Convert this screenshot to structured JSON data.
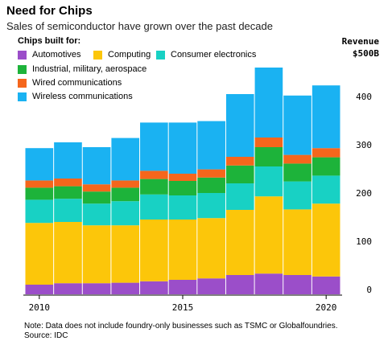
{
  "header": {
    "title": "Need for Chips",
    "subtitle": "Sales of semiconductor have grown over the past decade"
  },
  "legend": {
    "title": "Chips built for:"
  },
  "axis": {
    "ylabel_line1": "Revenue",
    "ylabel_line2": "$500B"
  },
  "footer": {
    "note": "Note: Data does not include foundry-only businesses such as TSMC or Globalfoundries.",
    "source": "Source: IDC"
  },
  "chart_data": {
    "type": "bar",
    "stacked": true,
    "title": "Need for Chips",
    "subtitle": "Sales of semiconductor have grown over the past decade",
    "categories": [
      2010,
      2011,
      2012,
      2013,
      2014,
      2015,
      2016,
      2017,
      2018,
      2019,
      2020
    ],
    "x_tick_labels": [
      "2010",
      "2015",
      "2020"
    ],
    "x_ticks": [
      2010,
      2015,
      2020
    ],
    "y_ticks": [
      0,
      100,
      200,
      300,
      400
    ],
    "y_tick_labels": [
      "0",
      "100",
      "200",
      "300",
      "400"
    ],
    "ylim": [
      0,
      500
    ],
    "ylabel": "Revenue",
    "ylabel_top": "$500B",
    "grid": false,
    "legend_position": "top-left",
    "series": [
      {
        "name": "Automotives",
        "color": "#9b4ec9",
        "values": [
          20,
          23,
          23,
          24,
          27,
          30,
          33,
          40,
          43,
          40,
          37
        ]
      },
      {
        "name": "Computing",
        "color": "#fcc60a",
        "values": [
          128,
          127,
          120,
          119,
          128,
          125,
          125,
          135,
          160,
          136,
          151
        ]
      },
      {
        "name": "Consumer electronics",
        "color": "#18d1c4",
        "values": [
          48,
          48,
          45,
          50,
          52,
          50,
          52,
          55,
          62,
          58,
          58
        ]
      },
      {
        "name": "Industrial, military, aerospace",
        "color": "#1db33a",
        "values": [
          25,
          26,
          25,
          28,
          32,
          30,
          32,
          37,
          40,
          37,
          38
        ]
      },
      {
        "name": "Wired communications",
        "color": "#f5661c",
        "values": [
          15,
          16,
          15,
          15,
          17,
          15,
          17,
          18,
          20,
          18,
          19
        ]
      },
      {
        "name": "Wireless communications",
        "color": "#1ab2f2",
        "values": [
          67,
          75,
          77,
          88,
          100,
          106,
          100,
          130,
          145,
          123,
          130
        ]
      }
    ]
  }
}
